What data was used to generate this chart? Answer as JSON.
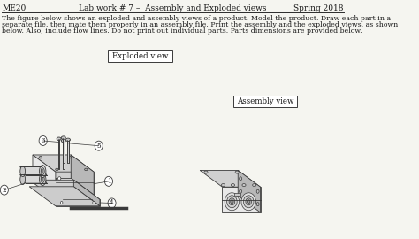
{
  "title_left": "ME20",
  "title_center": "Lab work # 7 –  Assembly and Exploded views",
  "title_right": "Spring 2018",
  "body_line1": "The figure below shows an exploded and assembly views of a product. Model the product. Draw each part in a",
  "body_line2": "separate file, then mate them properly in an assembly file. Print the assembly and the exploded views, as shown",
  "body_line3": "below. Also, include flow lines. Do not print out individual parts. Parts dimensions are provided below.",
  "exploded_label": "Exploded view",
  "assembly_label": "Assembly view",
  "bg_color": "#f5f5f0",
  "text_color": "#1a1a1a",
  "line_color": "#2a2a2a",
  "draw_color": "#3a3a3a",
  "face_light": "#e8e8e8",
  "face_mid": "#d0d0d0",
  "face_dark": "#b8b8b8",
  "title_fontsize": 6.5,
  "body_fontsize": 5.6,
  "label_fontsize": 6.2,
  "part_label_fontsize": 5.2
}
